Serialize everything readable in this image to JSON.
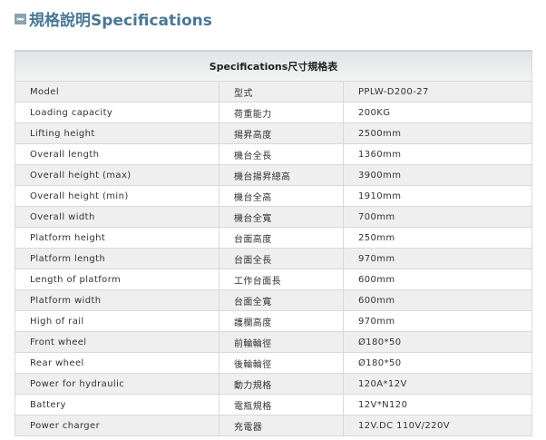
{
  "title": "規格說明Specifications",
  "title_icon": "triple-arrow-icon",
  "table": {
    "header": "Specifications尺寸規格表",
    "rows": [
      [
        "Model",
        "型式",
        "PPLW-D200-27"
      ],
      [
        "Loading capacity",
        "荷重能力",
        "200KG"
      ],
      [
        "Lifting height",
        "揚昇高度",
        "2500mm"
      ],
      [
        "Overall length",
        "機台全長",
        "1360mm"
      ],
      [
        "Overall height (max)",
        "機台揚昇總高",
        "3900mm"
      ],
      [
        "Overall height (min)",
        "機台全高",
        "1910mm"
      ],
      [
        "Overall width",
        "機台全寬",
        "700mm"
      ],
      [
        "Platform height",
        "台面高度",
        "250mm"
      ],
      [
        "Platform length",
        "台面全長",
        "970mm"
      ],
      [
        "Length of platform",
        "工作台面長",
        "600mm"
      ],
      [
        "Platform width",
        "台面全寬",
        "600mm"
      ],
      [
        "High of rail",
        "護欄高度",
        "970mm"
      ],
      [
        "Front wheel",
        "前輪輪徑",
        "Ø180*50"
      ],
      [
        "Rear wheel",
        "後輪輪徑",
        "Ø180*50"
      ],
      [
        "Power for hydraulic",
        "動力規格",
        "120A*12V"
      ],
      [
        "Battery",
        "電瓶規格",
        "12V*N120"
      ],
      [
        "Power charger",
        "充電器",
        "12V.DC 110V/220V"
      ]
    ]
  }
}
